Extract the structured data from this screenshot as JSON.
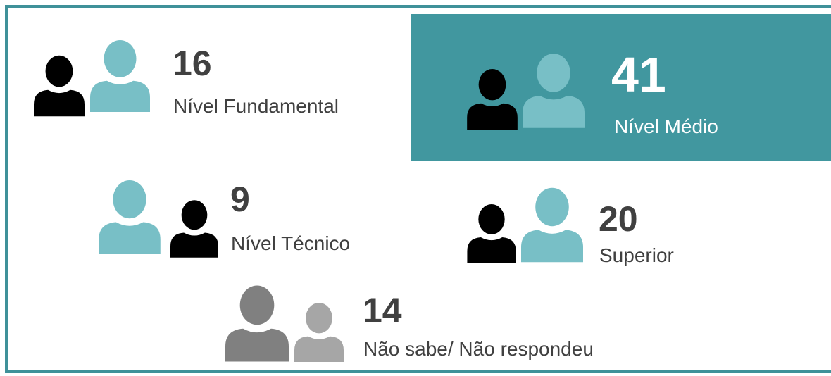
{
  "items": [
    {
      "number": "16",
      "label": "Nível Fundamental"
    },
    {
      "number": "41",
      "label": "Nível Médio"
    },
    {
      "number": "9",
      "label": "Nível Técnico"
    },
    {
      "number": "20",
      "label": "Superior"
    },
    {
      "number": "14",
      "label": "Não sabe/ Não respondeu"
    }
  ]
}
